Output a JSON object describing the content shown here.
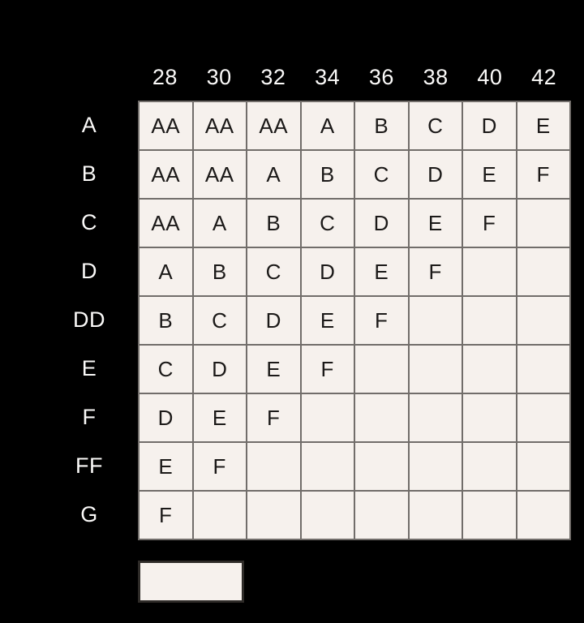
{
  "colors": {
    "background": "#000000",
    "cell_background": "#f6f1ed",
    "grid_border": "#716d6a",
    "cell_text": "#1b1918",
    "header_text": "#fbfaf9",
    "empty_box_border": "#2e2b28"
  },
  "chart_data": {
    "type": "table",
    "column_headers": [
      "28",
      "30",
      "32",
      "34",
      "36",
      "38",
      "40",
      "42"
    ],
    "row_headers": [
      "A",
      "B",
      "C",
      "D",
      "DD",
      "E",
      "F",
      "FF",
      "G"
    ],
    "cells": [
      [
        "AA",
        "AA",
        "AA",
        "A",
        "B",
        "C",
        "D",
        "E"
      ],
      [
        "AA",
        "AA",
        "A",
        "B",
        "C",
        "D",
        "E",
        "F"
      ],
      [
        "AA",
        "A",
        "B",
        "C",
        "D",
        "E",
        "F",
        ""
      ],
      [
        "A",
        "B",
        "C",
        "D",
        "E",
        "F",
        "",
        ""
      ],
      [
        "B",
        "C",
        "D",
        "E",
        "F",
        "",
        "",
        ""
      ],
      [
        "C",
        "D",
        "E",
        "F",
        "",
        "",
        "",
        ""
      ],
      [
        "D",
        "E",
        "F",
        "",
        "",
        "",
        "",
        ""
      ],
      [
        "E",
        "F",
        "",
        "",
        "",
        "",
        "",
        ""
      ],
      [
        "F",
        "",
        "",
        "",
        "",
        "",
        "",
        ""
      ]
    ],
    "layout": {
      "grid": "on",
      "legend": "empty swatch box bottom-left"
    }
  }
}
